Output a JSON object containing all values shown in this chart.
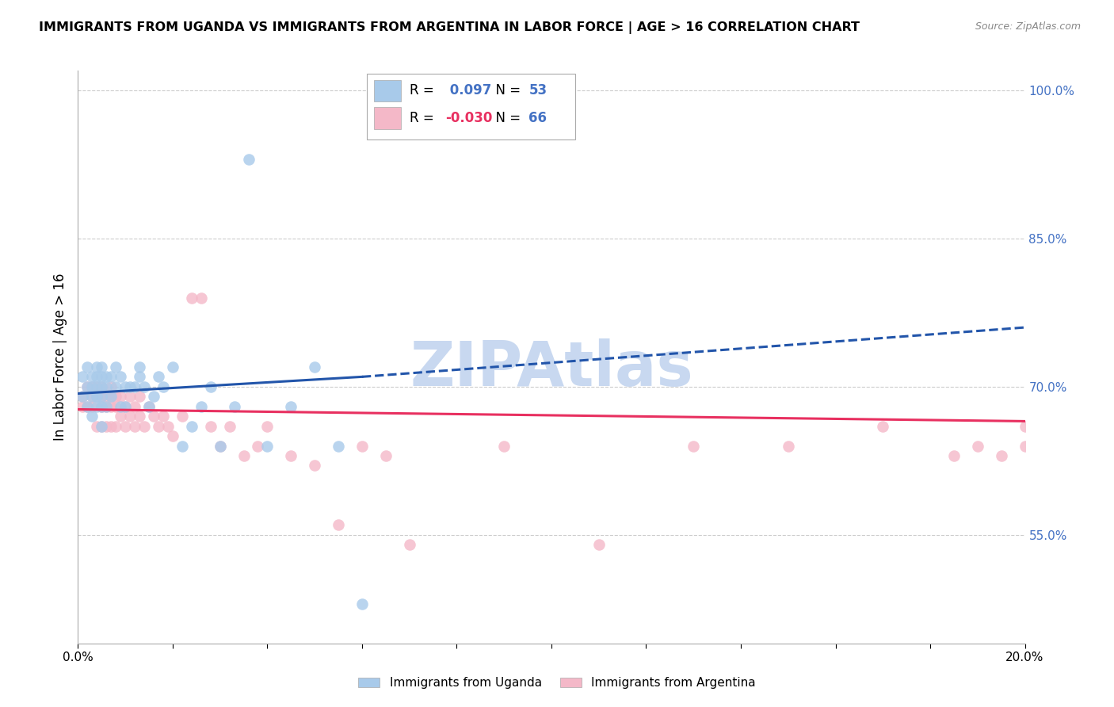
{
  "title": "IMMIGRANTS FROM UGANDA VS IMMIGRANTS FROM ARGENTINA IN LABOR FORCE | AGE > 16 CORRELATION CHART",
  "source": "Source: ZipAtlas.com",
  "ylabel": "In Labor Force | Age > 16",
  "right_ytick_labels": [
    "100.0%",
    "85.0%",
    "70.0%",
    "55.0%"
  ],
  "right_ytick_values": [
    1.0,
    0.85,
    0.7,
    0.55
  ],
  "xlim": [
    0.0,
    0.2
  ],
  "ylim": [
    0.44,
    1.02
  ],
  "xtick_labels": [
    "0.0%",
    "",
    "",
    "",
    "",
    "",
    "",
    "",
    "",
    "",
    "20.0%"
  ],
  "xtick_values": [
    0.0,
    0.02,
    0.04,
    0.06,
    0.08,
    0.1,
    0.12,
    0.14,
    0.16,
    0.18,
    0.2
  ],
  "legend_r_uganda": "0.097",
  "legend_n_uganda": "53",
  "legend_r_argentina": "-0.030",
  "legend_n_argentina": "66",
  "uganda_color": "#a8caea",
  "argentina_color": "#f4b8c8",
  "trend_uganda_color": "#2255aa",
  "trend_argentina_color": "#e83060",
  "background_color": "#ffffff",
  "grid_color": "#cccccc",
  "watermark": "ZIPAtlas",
  "watermark_color": "#c8d8f0",
  "right_axis_color": "#4472c4",
  "uganda_x": [
    0.001,
    0.001,
    0.002,
    0.002,
    0.002,
    0.003,
    0.003,
    0.003,
    0.003,
    0.004,
    0.004,
    0.004,
    0.004,
    0.004,
    0.005,
    0.005,
    0.005,
    0.005,
    0.005,
    0.005,
    0.006,
    0.006,
    0.006,
    0.007,
    0.007,
    0.008,
    0.008,
    0.009,
    0.009,
    0.01,
    0.01,
    0.011,
    0.012,
    0.013,
    0.013,
    0.014,
    0.015,
    0.016,
    0.017,
    0.018,
    0.02,
    0.022,
    0.024,
    0.026,
    0.028,
    0.03,
    0.033,
    0.036,
    0.04,
    0.045,
    0.05,
    0.055,
    0.06
  ],
  "uganda_y": [
    0.71,
    0.69,
    0.72,
    0.7,
    0.68,
    0.71,
    0.7,
    0.69,
    0.67,
    0.72,
    0.71,
    0.7,
    0.69,
    0.68,
    0.72,
    0.71,
    0.7,
    0.69,
    0.68,
    0.66,
    0.71,
    0.7,
    0.68,
    0.71,
    0.69,
    0.72,
    0.7,
    0.71,
    0.68,
    0.7,
    0.68,
    0.7,
    0.7,
    0.72,
    0.71,
    0.7,
    0.68,
    0.69,
    0.71,
    0.7,
    0.72,
    0.64,
    0.66,
    0.68,
    0.7,
    0.64,
    0.68,
    0.93,
    0.64,
    0.68,
    0.72,
    0.64,
    0.48
  ],
  "argentina_x": [
    0.001,
    0.001,
    0.002,
    0.002,
    0.003,
    0.003,
    0.003,
    0.004,
    0.004,
    0.004,
    0.005,
    0.005,
    0.005,
    0.005,
    0.006,
    0.006,
    0.006,
    0.007,
    0.007,
    0.007,
    0.007,
    0.008,
    0.008,
    0.008,
    0.009,
    0.009,
    0.01,
    0.01,
    0.011,
    0.011,
    0.012,
    0.012,
    0.013,
    0.013,
    0.014,
    0.015,
    0.016,
    0.017,
    0.018,
    0.019,
    0.02,
    0.022,
    0.024,
    0.026,
    0.028,
    0.03,
    0.032,
    0.035,
    0.038,
    0.04,
    0.045,
    0.05,
    0.055,
    0.06,
    0.065,
    0.07,
    0.09,
    0.11,
    0.13,
    0.15,
    0.17,
    0.185,
    0.19,
    0.195,
    0.2,
    0.2
  ],
  "argentina_y": [
    0.69,
    0.68,
    0.7,
    0.68,
    0.7,
    0.69,
    0.68,
    0.7,
    0.69,
    0.66,
    0.7,
    0.69,
    0.68,
    0.66,
    0.69,
    0.68,
    0.66,
    0.7,
    0.69,
    0.68,
    0.66,
    0.69,
    0.68,
    0.66,
    0.69,
    0.67,
    0.68,
    0.66,
    0.69,
    0.67,
    0.68,
    0.66,
    0.69,
    0.67,
    0.66,
    0.68,
    0.67,
    0.66,
    0.67,
    0.66,
    0.65,
    0.67,
    0.79,
    0.79,
    0.66,
    0.64,
    0.66,
    0.63,
    0.64,
    0.66,
    0.63,
    0.62,
    0.56,
    0.64,
    0.63,
    0.54,
    0.64,
    0.54,
    0.64,
    0.64,
    0.66,
    0.63,
    0.64,
    0.63,
    0.64,
    0.66
  ],
  "trend_uganda_x0": 0.0,
  "trend_uganda_x1": 0.06,
  "trend_uganda_x2": 0.2,
  "trend_uganda_y0": 0.693,
  "trend_uganda_y1": 0.71,
  "trend_uganda_y2": 0.76,
  "trend_argentina_x0": 0.0,
  "trend_argentina_x1": 0.2,
  "trend_argentina_y0": 0.677,
  "trend_argentina_y1": 0.665
}
